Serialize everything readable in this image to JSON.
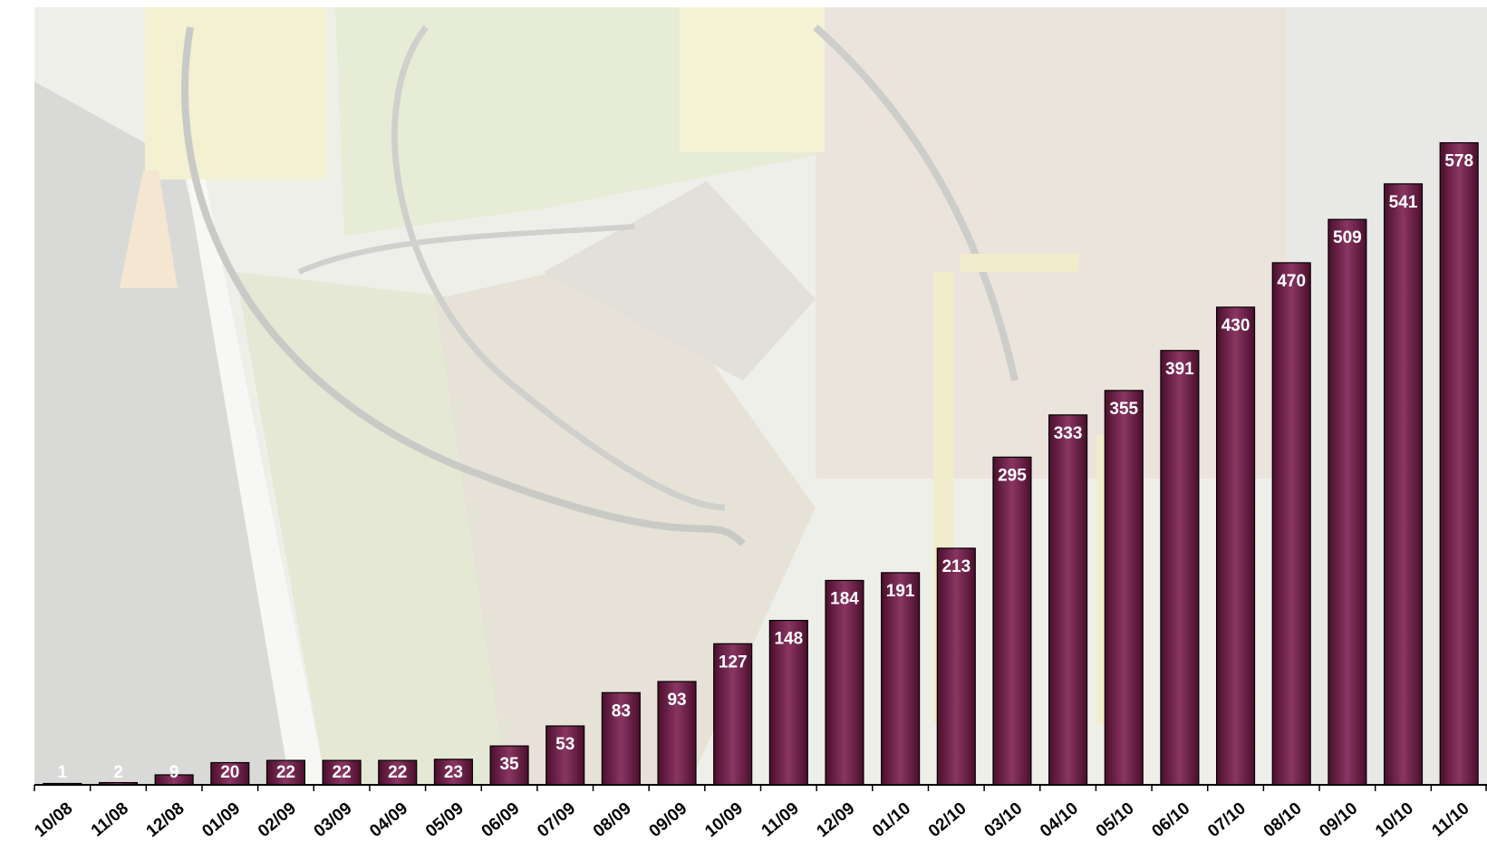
{
  "colors": {
    "bar_fill_dark": "#4a0f2c",
    "bar_fill_light": "#8a3563",
    "bar_stroke": "#000000",
    "label_text": "#ffffff",
    "axis": "#000000"
  },
  "chart_data": {
    "type": "bar",
    "title": "",
    "xlabel": "",
    "ylabel": "",
    "categories": [
      "10/08",
      "11/08",
      "12/08",
      "01/09",
      "02/09",
      "03/09",
      "04/09",
      "05/09",
      "06/09",
      "07/09",
      "08/09",
      "09/09",
      "10/09",
      "11/09",
      "12/09",
      "01/10",
      "02/10",
      "03/10",
      "04/10",
      "05/10",
      "06/10",
      "07/10",
      "08/10",
      "09/10",
      "10/10",
      "11/10"
    ],
    "values": [
      1,
      2,
      9,
      20,
      22,
      22,
      22,
      23,
      35,
      53,
      83,
      93,
      127,
      148,
      184,
      191,
      213,
      295,
      333,
      355,
      391,
      430,
      470,
      509,
      541,
      578
    ],
    "data_labels": [
      "1",
      "2",
      "9",
      "20",
      "22",
      "22",
      "22",
      "23",
      "35",
      "53",
      "83",
      "93",
      "127",
      "148",
      "184",
      "191",
      "213",
      "295",
      "333",
      "355",
      "391",
      "430",
      "470",
      "509",
      "541",
      "578"
    ],
    "ylim": [
      0,
      700
    ],
    "grid": false,
    "legend": "none",
    "background": "faded photo of cable-laying trench work"
  }
}
